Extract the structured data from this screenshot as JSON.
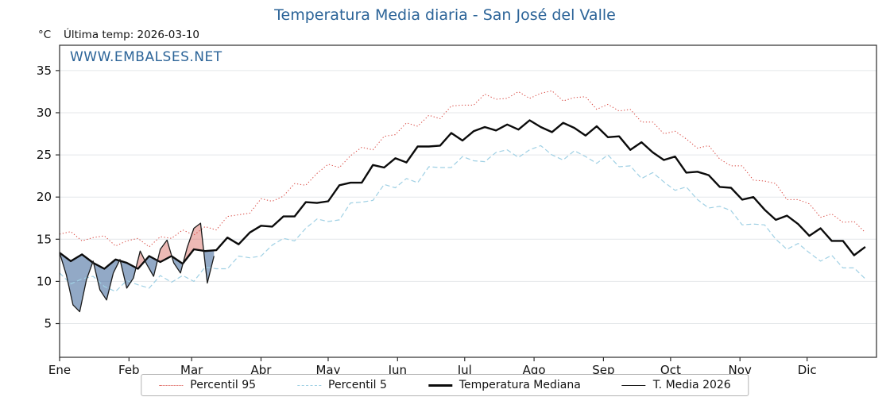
{
  "chart_data": {
    "type": "line",
    "title": "Temperatura Media diaria - San José del Valle",
    "ylabel_unit": "°C",
    "annotation_last_temp": "Última temp: 2026-03-10",
    "watermark": "WWW.EMBALSES.NET",
    "x_tick_labels": [
      "Ene",
      "Feb",
      "Mar",
      "Abr",
      "May",
      "Jun",
      "Jul",
      "Ago",
      "Sep",
      "Oct",
      "Nov",
      "Dic"
    ],
    "month_start_days": [
      0,
      31,
      59,
      90,
      120,
      151,
      181,
      212,
      243,
      273,
      304,
      334
    ],
    "x_range_days": [
      0,
      365
    ],
    "ylim": [
      1,
      38
    ],
    "y_ticks": [
      5,
      10,
      15,
      20,
      25,
      30,
      35
    ],
    "grid": "horizontal-light",
    "legend_position": "bottom-center",
    "x_days": [
      0,
      5,
      10,
      15,
      20,
      25,
      30,
      35,
      40,
      45,
      50,
      55,
      60,
      65,
      70,
      75,
      80,
      85,
      90,
      95,
      100,
      105,
      110,
      115,
      120,
      125,
      130,
      135,
      140,
      145,
      150,
      155,
      160,
      165,
      170,
      175,
      180,
      185,
      190,
      195,
      200,
      205,
      210,
      215,
      220,
      225,
      230,
      235,
      240,
      245,
      250,
      255,
      260,
      265,
      270,
      275,
      280,
      285,
      290,
      295,
      300,
      305,
      310,
      315,
      320,
      325,
      330,
      335,
      340,
      345,
      350,
      355,
      360
    ],
    "series": [
      {
        "name": "Percentil 95",
        "color": "#d8453e",
        "style": "dotted",
        "width": 1,
        "values": [
          15.6,
          15.9,
          14.8,
          15.2,
          15.4,
          14.2,
          14.8,
          15.1,
          14.1,
          15.3,
          15.1,
          16.1,
          15.5,
          16.5,
          16.1,
          17.7,
          17.9,
          18.1,
          19.8,
          19.5,
          20.1,
          21.6,
          21.4,
          22.8,
          23.9,
          23.5,
          24.9,
          25.9,
          25.6,
          27.2,
          27.4,
          28.8,
          28.4,
          29.7,
          29.3,
          30.8,
          30.9,
          30.9,
          32.2,
          31.6,
          31.7,
          32.5,
          31.7,
          32.3,
          32.6,
          31.4,
          31.8,
          31.9,
          30.4,
          31.0,
          30.2,
          30.4,
          28.9,
          28.9,
          27.5,
          27.8,
          26.9,
          25.8,
          26.1,
          24.5,
          23.7,
          23.7,
          22.0,
          21.9,
          21.6,
          19.7,
          19.7,
          19.2,
          17.6,
          18.0,
          17.0,
          17.1,
          15.8
        ]
      },
      {
        "name": "Percentil 5",
        "color": "#9fd0e4",
        "style": "dashed",
        "width": 1.2,
        "values": [
          11.0,
          9.7,
          10.3,
          10.6,
          9.4,
          8.8,
          10.1,
          9.6,
          9.2,
          10.7,
          9.9,
          10.7,
          10.0,
          11.7,
          11.5,
          11.5,
          13.0,
          12.8,
          13.0,
          14.3,
          15.1,
          14.8,
          16.3,
          17.4,
          17.1,
          17.3,
          19.3,
          19.4,
          19.6,
          21.5,
          21.1,
          22.2,
          21.7,
          23.6,
          23.5,
          23.5,
          24.8,
          24.3,
          24.2,
          25.3,
          25.6,
          24.7,
          25.6,
          26.1,
          25.0,
          24.4,
          25.5,
          24.8,
          24.0,
          25.0,
          23.6,
          23.7,
          22.2,
          22.9,
          21.8,
          20.8,
          21.2,
          19.7,
          18.7,
          18.9,
          18.4,
          16.7,
          16.8,
          16.7,
          15.0,
          13.8,
          14.5,
          13.4,
          12.4,
          13.1,
          11.6,
          11.6,
          10.3
        ]
      },
      {
        "name": "Temperatura Mediana",
        "color": "#0b0b0b",
        "style": "solid",
        "width": 2.4,
        "values": [
          13.4,
          12.4,
          13.2,
          12.2,
          11.5,
          12.6,
          12.2,
          11.5,
          13.0,
          12.3,
          13.0,
          12.1,
          13.8,
          13.6,
          13.7,
          15.2,
          14.4,
          15.8,
          16.6,
          16.5,
          17.7,
          17.7,
          19.4,
          19.3,
          19.5,
          21.4,
          21.7,
          21.7,
          23.8,
          23.5,
          24.6,
          24.1,
          26.0,
          26.0,
          26.1,
          27.6,
          26.7,
          27.8,
          28.3,
          27.9,
          28.6,
          28.0,
          29.1,
          28.3,
          27.7,
          28.8,
          28.2,
          27.3,
          28.4,
          27.1,
          27.2,
          25.6,
          26.5,
          25.3,
          24.4,
          24.8,
          22.9,
          23.0,
          22.6,
          21.2,
          21.1,
          19.7,
          20.0,
          18.5,
          17.3,
          17.8,
          16.8,
          15.4,
          16.3,
          14.8,
          14.8,
          13.1,
          14.1
        ]
      },
      {
        "name": "T. Media 2026",
        "color": "#1a1a1a",
        "style": "solid",
        "width": 1.3,
        "x": [
          0,
          3,
          6,
          9,
          12,
          15,
          18,
          21,
          24,
          27,
          30,
          33,
          36,
          39,
          42,
          45,
          48,
          51,
          54,
          57,
          60,
          63,
          66,
          69
        ],
        "values": [
          13.4,
          10.8,
          7.2,
          6.4,
          10.2,
          12.4,
          9.0,
          7.8,
          11.0,
          12.6,
          9.2,
          10.4,
          13.6,
          12.0,
          10.6,
          13.8,
          14.9,
          12.2,
          11.0,
          14.0,
          16.3,
          16.9,
          9.8,
          13.0
        ]
      }
    ],
    "fill_between_2026_and_median": {
      "above_color": "rgba(216,100,92,0.45)",
      "below_color": "rgba(73,112,160,0.60)"
    }
  }
}
